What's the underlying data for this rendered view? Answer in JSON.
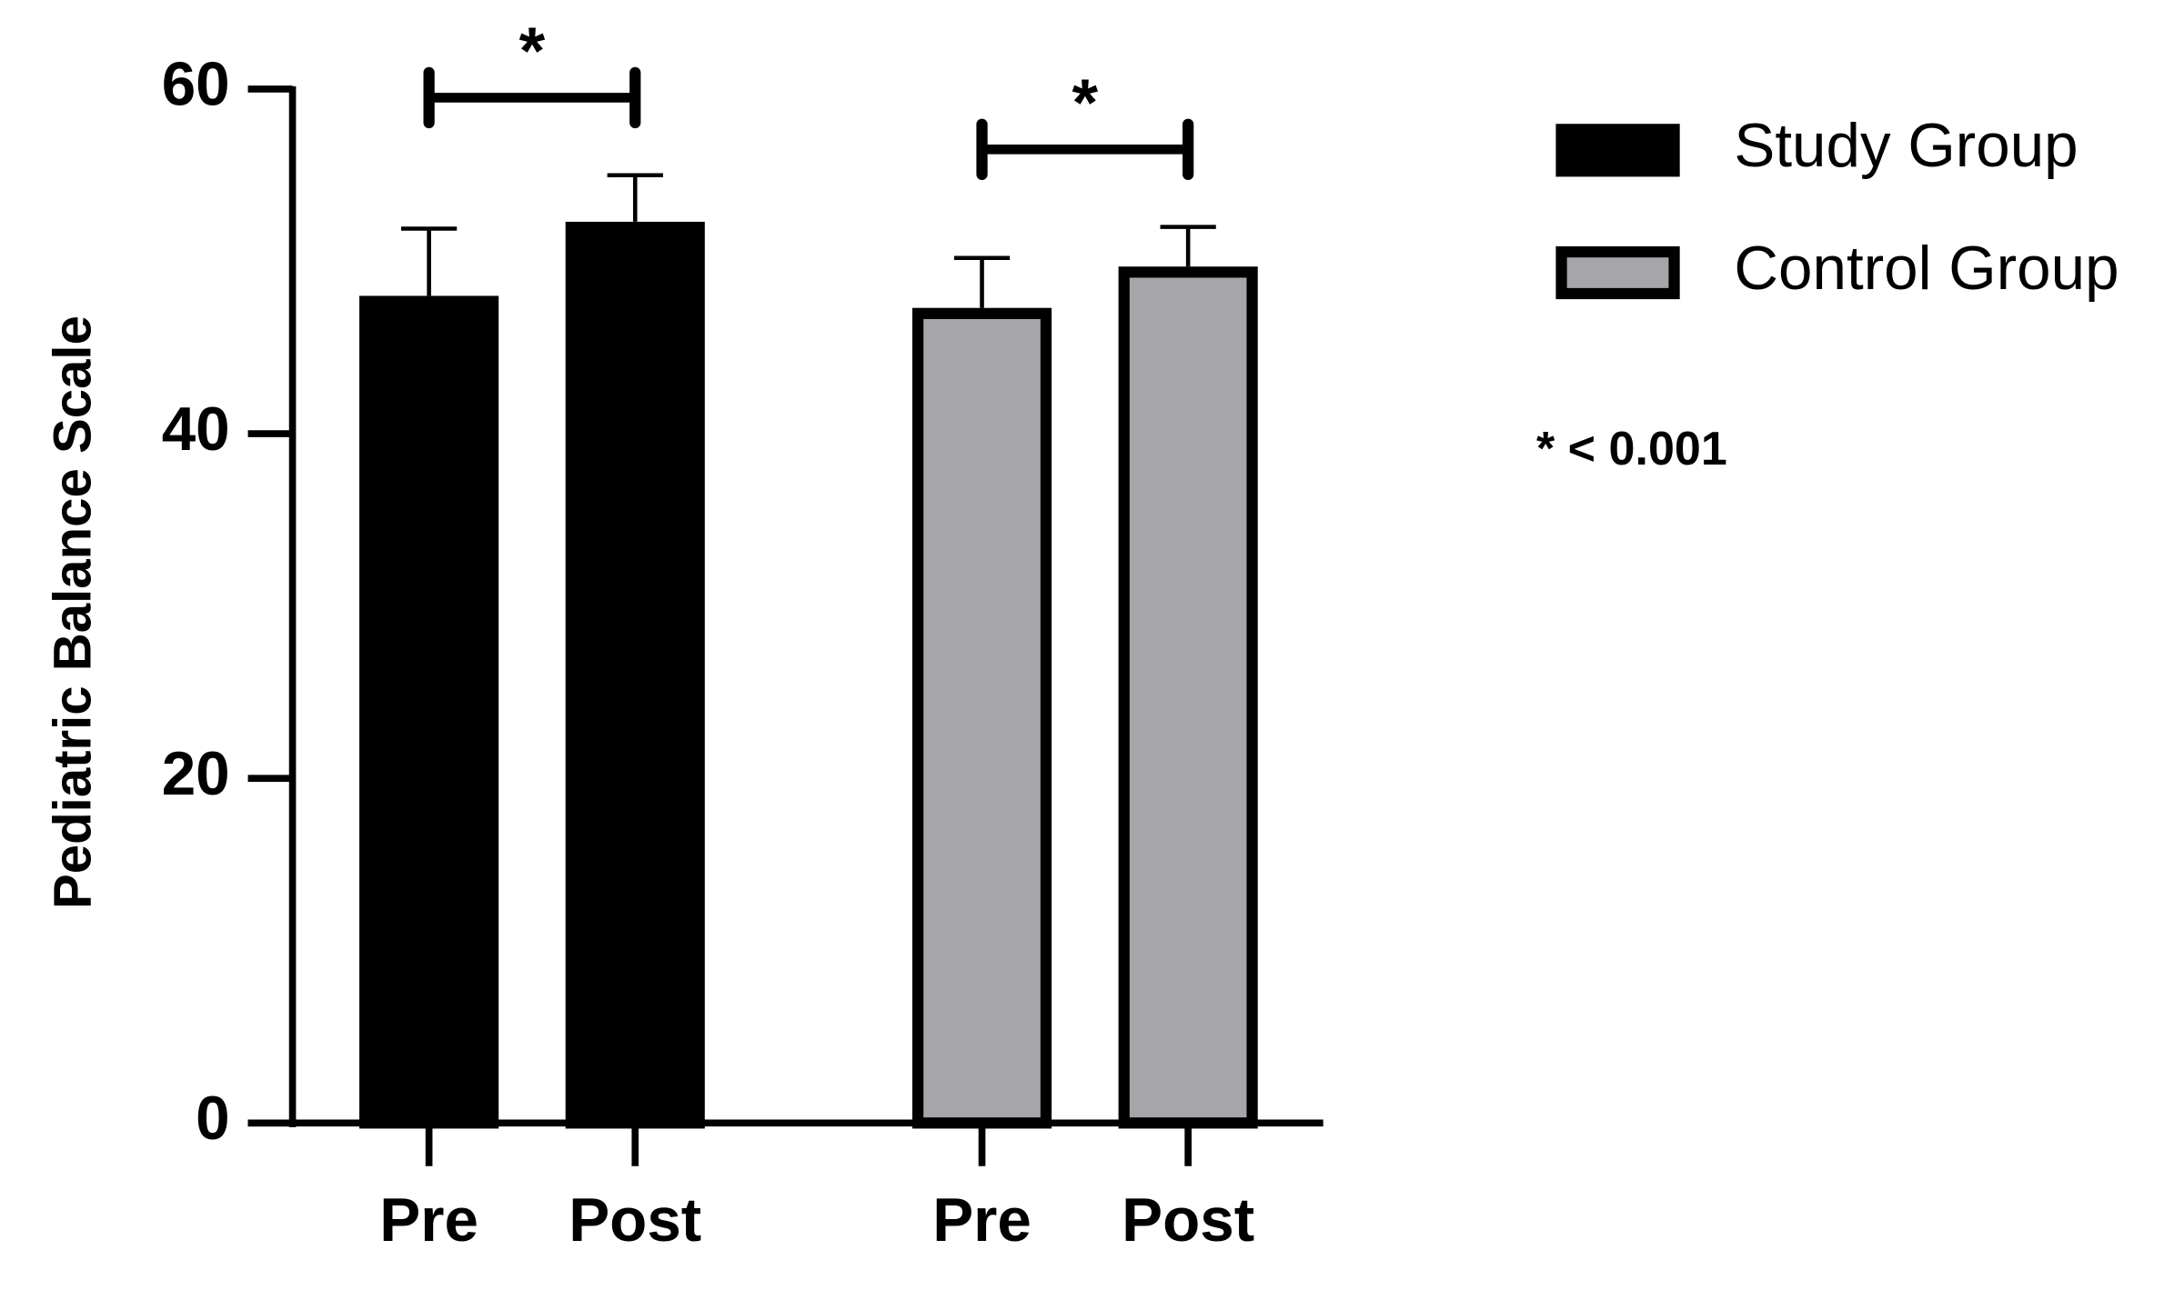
{
  "chart_data": {
    "type": "bar",
    "y_label": "Pediatric Balance Scale",
    "categories": [
      "Pre",
      "Post",
      "Pre",
      "Post"
    ],
    "series": [
      {
        "name": "Study Group",
        "color": "#000000",
        "values": [
          48,
          52.3,
          null,
          null
        ],
        "errors": [
          3.9,
          2.7,
          null,
          null
        ]
      },
      {
        "name": "Control Group",
        "color": "#a6a5aa",
        "values": [
          null,
          null,
          47.3,
          49.7
        ],
        "errors": [
          null,
          null,
          2.9,
          2.3
        ]
      }
    ],
    "ylim": [
      0,
      60
    ],
    "yticks": [
      0,
      20,
      40,
      60
    ],
    "significance": [
      {
        "label": "*",
        "from": 0,
        "to": 1
      },
      {
        "label": "*",
        "from": 2,
        "to": 3
      }
    ],
    "note": "* < 0.001"
  }
}
